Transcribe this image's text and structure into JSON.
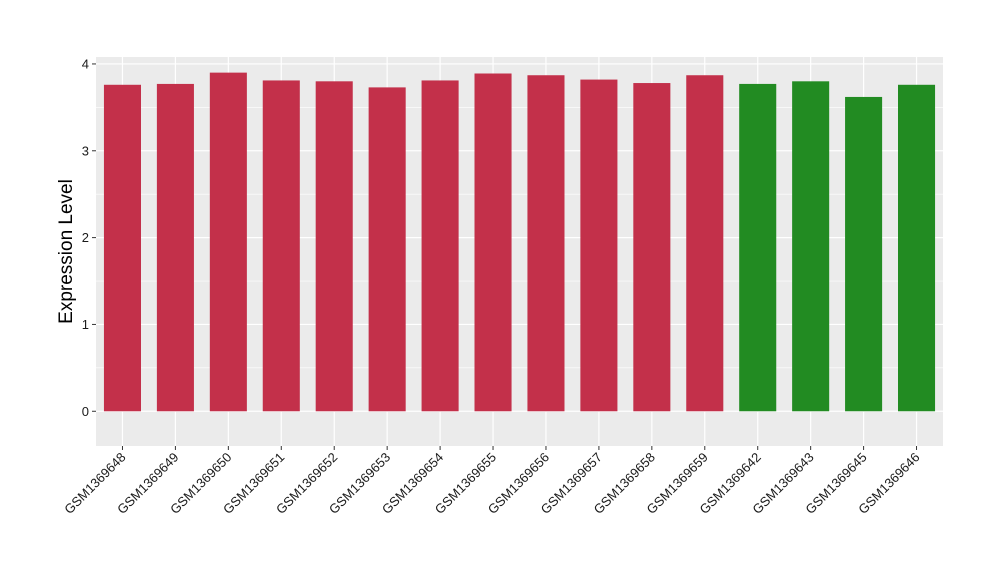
{
  "chart_data": {
    "type": "bar",
    "ylabel": "Expression Level",
    "xlabel": "",
    "ylim": [
      -0.4,
      4.08
    ],
    "yticks": [
      0,
      1,
      2,
      3,
      4
    ],
    "grid": true,
    "categories": [
      "GSM1369648",
      "GSM1369649",
      "GSM1369650",
      "GSM1369651",
      "GSM1369652",
      "GSM1369653",
      "GSM1369654",
      "GSM1369655",
      "GSM1369656",
      "GSM1369657",
      "GSM1369658",
      "GSM1369659",
      "GSM1369642",
      "GSM1369643",
      "GSM1369645",
      "GSM1369646"
    ],
    "values": [
      3.76,
      3.77,
      3.9,
      3.81,
      3.8,
      3.73,
      3.81,
      3.89,
      3.87,
      3.82,
      3.78,
      3.87,
      3.77,
      3.8,
      3.62,
      3.76
    ],
    "colors": [
      "#C3304A",
      "#C3304A",
      "#C3304A",
      "#C3304A",
      "#C3304A",
      "#C3304A",
      "#C3304A",
      "#C3304A",
      "#C3304A",
      "#C3304A",
      "#C3304A",
      "#C3304A",
      "#228B22",
      "#228B22",
      "#228B22",
      "#228B22"
    ],
    "panel_background": "#EBEBEB",
    "gridline_color": "#FFFFFF"
  }
}
